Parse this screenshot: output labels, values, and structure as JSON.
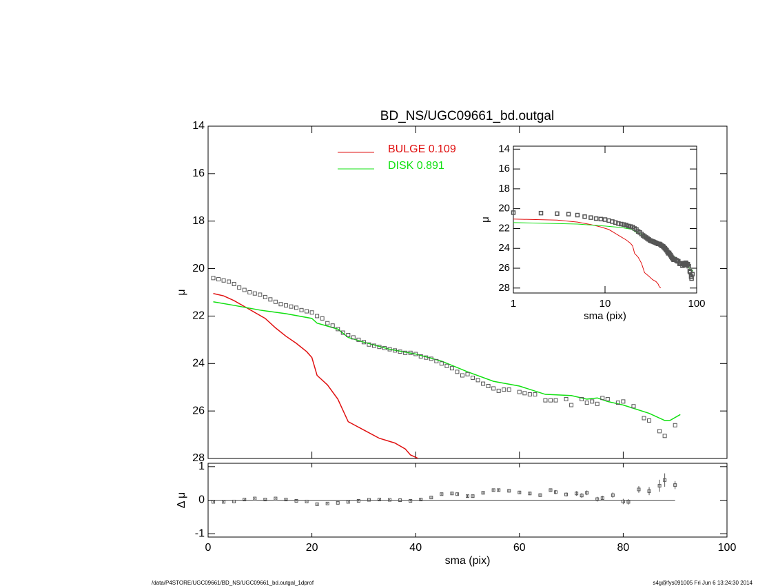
{
  "chart_data": [
    {
      "type": "profile",
      "title": "BD_NS/UGC09661_bd.outgal",
      "ylabel": "μ",
      "xlim": [
        0,
        100
      ],
      "xticks": [
        0,
        20,
        40,
        60,
        80,
        100
      ],
      "ylim": [
        14,
        28
      ],
      "yticks": [
        14,
        16,
        18,
        20,
        22,
        24,
        26,
        28
      ],
      "inverted_y": true,
      "points_color": "#555555",
      "x": [
        1,
        2,
        3,
        4,
        5,
        6,
        7,
        8,
        9,
        10,
        11,
        12,
        13,
        14,
        15,
        16,
        17,
        18,
        19,
        20,
        21,
        22,
        23,
        24,
        25,
        26,
        27,
        28,
        29,
        30,
        31,
        32,
        33,
        34,
        35,
        36,
        37,
        38,
        39,
        40,
        41,
        42,
        43,
        44,
        45,
        46,
        47,
        48,
        49,
        50,
        51,
        52,
        53,
        54,
        55,
        56,
        57,
        58,
        60,
        61,
        62,
        63,
        65,
        66,
        67,
        69,
        70,
        72,
        73,
        74,
        75,
        76,
        77,
        79,
        80,
        82,
        84,
        85,
        87,
        88,
        90
      ],
      "values": [
        20.4,
        20.45,
        20.5,
        20.55,
        20.65,
        20.8,
        20.9,
        21.0,
        21.05,
        21.1,
        21.2,
        21.3,
        21.4,
        21.5,
        21.55,
        21.6,
        21.65,
        21.75,
        21.8,
        21.85,
        22.0,
        22.1,
        22.3,
        22.4,
        22.55,
        22.7,
        22.8,
        22.9,
        23.0,
        23.1,
        23.2,
        23.25,
        23.3,
        23.35,
        23.4,
        23.45,
        23.5,
        23.55,
        23.55,
        23.6,
        23.7,
        23.75,
        23.8,
        23.9,
        24.0,
        24.1,
        24.2,
        24.35,
        24.5,
        24.45,
        24.6,
        24.7,
        24.85,
        24.95,
        25.05,
        25.15,
        25.1,
        25.1,
        25.2,
        25.25,
        25.3,
        25.3,
        25.55,
        25.55,
        25.55,
        25.5,
        25.75,
        25.5,
        25.65,
        25.6,
        25.7,
        25.45,
        25.5,
        25.65,
        25.6,
        25.8,
        26.3,
        26.4,
        26.85,
        27.05,
        26.6
      ],
      "legend": "top",
      "series": [
        {
          "name": "BULGE  0.109",
          "color": "#e01010",
          "x": [
            1,
            3,
            5,
            7,
            9,
            11,
            13,
            15,
            17,
            19,
            20,
            21,
            23,
            25,
            27,
            30,
            33,
            36,
            38,
            39,
            40.5
          ],
          "values": [
            21.05,
            21.15,
            21.35,
            21.6,
            21.85,
            22.1,
            22.5,
            22.85,
            23.15,
            23.5,
            23.75,
            24.5,
            24.9,
            25.5,
            26.45,
            26.8,
            27.15,
            27.35,
            27.6,
            27.85,
            28.0
          ]
        },
        {
          "name": "DISK  0.891",
          "color": "#10e010",
          "x": [
            1,
            5,
            10,
            15,
            20,
            21,
            25,
            27,
            30,
            35,
            40,
            45,
            50,
            55,
            60,
            65,
            70,
            73,
            75,
            77,
            80,
            85,
            88,
            89,
            91
          ],
          "values": [
            21.4,
            21.55,
            21.75,
            21.9,
            22.1,
            22.3,
            22.55,
            22.9,
            23.1,
            23.4,
            23.6,
            23.9,
            24.35,
            24.75,
            24.95,
            25.3,
            25.35,
            25.5,
            25.45,
            25.6,
            25.75,
            26.1,
            26.4,
            26.4,
            26.15
          ]
        }
      ]
    },
    {
      "type": "residual",
      "ylabel": "Δ μ",
      "xlabel": "sma (pix)",
      "xlim": [
        0,
        100
      ],
      "xticks": [
        0,
        20,
        40,
        60,
        80,
        100
      ],
      "ylim": [
        -1.1,
        1.1
      ],
      "yticks": [
        1,
        0,
        -1
      ],
      "color": "#555555",
      "x": [
        1,
        3,
        5,
        7,
        9,
        11,
        13,
        15,
        17,
        19,
        21,
        23,
        25,
        27,
        29,
        31,
        33,
        35,
        37,
        39,
        41,
        43,
        45,
        47,
        48,
        50,
        51,
        53,
        55,
        56,
        58,
        60,
        62,
        64,
        66,
        67,
        69,
        71,
        72,
        73,
        75,
        76,
        78,
        80,
        81,
        83,
        85,
        87,
        88,
        90
      ],
      "values": [
        -0.05,
        -0.05,
        -0.04,
        0.02,
        0.05,
        0.02,
        0.05,
        0.02,
        -0.02,
        -0.04,
        -0.12,
        -0.1,
        -0.08,
        -0.05,
        -0.02,
        0.01,
        0.02,
        0.01,
        0.0,
        -0.02,
        0.02,
        0.08,
        0.18,
        0.2,
        0.18,
        0.12,
        0.12,
        0.22,
        0.3,
        0.3,
        0.28,
        0.23,
        0.2,
        0.15,
        0.3,
        0.24,
        0.17,
        0.2,
        0.14,
        0.22,
        0.03,
        0.06,
        0.15,
        -0.04,
        -0.05,
        0.32,
        0.27,
        0.43,
        0.6,
        0.45
      ],
      "errors": [
        0.02,
        0.02,
        0.02,
        0.02,
        0.02,
        0.02,
        0.02,
        0.02,
        0.02,
        0.02,
        0.02,
        0.02,
        0.02,
        0.02,
        0.02,
        0.02,
        0.02,
        0.02,
        0.02,
        0.02,
        0.03,
        0.03,
        0.03,
        0.03,
        0.03,
        0.04,
        0.04,
        0.04,
        0.04,
        0.04,
        0.05,
        0.05,
        0.05,
        0.05,
        0.05,
        0.06,
        0.06,
        0.07,
        0.07,
        0.07,
        0.07,
        0.07,
        0.08,
        0.08,
        0.08,
        0.1,
        0.12,
        0.18,
        0.2,
        0.12
      ]
    },
    {
      "type": "inset",
      "ylabel": "μ",
      "xlabel": "sma (pix)",
      "xlog": true,
      "xlim": [
        1,
        100
      ],
      "xticks": [
        1,
        10,
        100
      ],
      "ylim": [
        13.7,
        28.5
      ],
      "yticks": [
        14,
        16,
        18,
        20,
        22,
        24,
        26,
        28
      ]
    }
  ],
  "footer": {
    "left": "/data/P4STORE/UGC09661/BD_NS/UGC09661_bd.outgal_1dprof",
    "right": "s4g@fys091005  Fri Jun  6 13:24:30 2014"
  }
}
